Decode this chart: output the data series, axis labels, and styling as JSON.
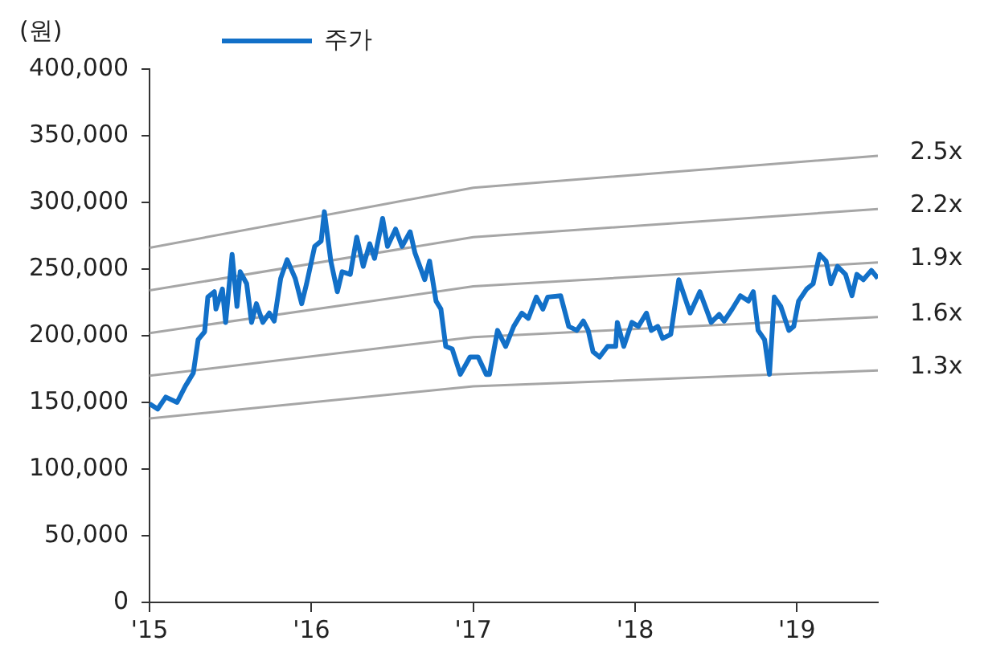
{
  "chart_data": {
    "type": "line",
    "ylabel": "(원)",
    "legend": "top left",
    "grid": false,
    "marker": "none",
    "line_style": "solid",
    "xlim": [
      2015,
      2019.5
    ],
    "xticks": [
      {
        "value": 2015,
        "label": "'15"
      },
      {
        "value": 2016,
        "label": "'16"
      },
      {
        "value": 2017,
        "label": "'17"
      },
      {
        "value": 2018,
        "label": "'18"
      },
      {
        "value": 2019,
        "label": "'19"
      }
    ],
    "ylim": [
      0,
      400000
    ],
    "yticks": [
      {
        "value": 0,
        "label": "0"
      },
      {
        "value": 50000,
        "label": "50,000"
      },
      {
        "value": 100000,
        "label": "100,000"
      },
      {
        "value": 150000,
        "label": "150,000"
      },
      {
        "value": 200000,
        "label": "200,000"
      },
      {
        "value": 250000,
        "label": "250,000"
      },
      {
        "value": 300000,
        "label": "300,000"
      },
      {
        "value": 350000,
        "label": "350,000"
      },
      {
        "value": 400000,
        "label": "400,000"
      }
    ],
    "x": [
      2015.0,
      2015.05,
      2015.1,
      2015.17,
      2015.22,
      2015.27,
      2015.3,
      2015.34,
      2015.36,
      2015.4,
      2015.41,
      2015.45,
      2015.47,
      2015.51,
      2015.54,
      2015.56,
      2015.6,
      2015.63,
      2015.66,
      2015.7,
      2015.74,
      2015.77,
      2015.81,
      2015.85,
      2015.9,
      2015.94,
      2015.97,
      2016.02,
      2016.06,
      2016.08,
      2016.12,
      2016.16,
      2016.19,
      2016.24,
      2016.28,
      2016.32,
      2016.36,
      2016.39,
      2016.44,
      2016.47,
      2016.52,
      2016.56,
      2016.61,
      2016.64,
      2016.7,
      2016.73,
      2016.77,
      2016.8,
      2016.83,
      2016.87,
      2016.92,
      2016.98,
      2017.03,
      2017.08,
      2017.1,
      2017.15,
      2017.2,
      2017.25,
      2017.3,
      2017.34,
      2017.39,
      2017.43,
      2017.46,
      2017.54,
      2017.59,
      2017.64,
      2017.68,
      2017.71,
      2017.74,
      2017.78,
      2017.83,
      2017.88,
      2017.89,
      2017.93,
      2017.98,
      2018.02,
      2018.07,
      2018.1,
      2018.14,
      2018.17,
      2018.22,
      2018.27,
      2018.34,
      2018.4,
      2018.47,
      2018.52,
      2018.55,
      2018.6,
      2018.65,
      2018.7,
      2018.73,
      2018.76,
      2018.8,
      2018.83,
      2018.86,
      2018.9,
      2018.95,
      2018.98,
      2019.01,
      2019.06,
      2019.1,
      2019.14,
      2019.18,
      2019.21,
      2019.25,
      2019.3,
      2019.34,
      2019.37,
      2019.41,
      2019.46,
      2019.5
    ],
    "series": [
      {
        "name": "주가",
        "color": "#1270c8",
        "values": [
          149000,
          145000,
          154000,
          150000,
          162000,
          172000,
          197000,
          203000,
          229000,
          233000,
          220000,
          235000,
          210000,
          261000,
          222000,
          248000,
          239000,
          210000,
          224000,
          210000,
          217000,
          211000,
          243000,
          257000,
          243000,
          224000,
          239000,
          267000,
          271000,
          293000,
          256000,
          233000,
          248000,
          246000,
          274000,
          252000,
          269000,
          258000,
          288000,
          267000,
          280000,
          267000,
          278000,
          262000,
          242000,
          256000,
          226000,
          220000,
          192000,
          190000,
          171000,
          184000,
          184000,
          171000,
          171000,
          204000,
          192000,
          207000,
          217000,
          213000,
          229000,
          220000,
          229000,
          230000,
          207000,
          204000,
          211000,
          204000,
          188000,
          184000,
          192000,
          192000,
          210000,
          192000,
          210000,
          207000,
          217000,
          204000,
          207000,
          198000,
          201000,
          242000,
          217000,
          233000,
          210000,
          216000,
          211000,
          220000,
          230000,
          226000,
          233000,
          204000,
          197000,
          171000,
          229000,
          222000,
          204000,
          207000,
          226000,
          235000,
          239000,
          261000,
          256000,
          239000,
          252000,
          246000,
          230000,
          246000,
          242000,
          249000,
          243000
        ]
      },
      {
        "name": "2.5x",
        "color": "#a6a6a6",
        "x": [
          2015,
          2017,
          2019.5
        ],
        "values": [
          266000,
          311000,
          335000
        ]
      },
      {
        "name": "2.2x",
        "color": "#a6a6a6",
        "x": [
          2015,
          2017,
          2019.5
        ],
        "values": [
          234000,
          274000,
          295000
        ]
      },
      {
        "name": "1.9x",
        "color": "#a6a6a6",
        "x": [
          2015,
          2017,
          2019.5
        ],
        "values": [
          202000,
          237000,
          255000
        ]
      },
      {
        "name": "1.6x",
        "color": "#a6a6a6",
        "x": [
          2015,
          2017,
          2019.5
        ],
        "values": [
          170000,
          199000,
          214000
        ]
      },
      {
        "name": "1.3x",
        "color": "#a6a6a6",
        "x": [
          2015,
          2017,
          2019.5
        ],
        "values": [
          138000,
          162000,
          174000
        ]
      }
    ]
  }
}
